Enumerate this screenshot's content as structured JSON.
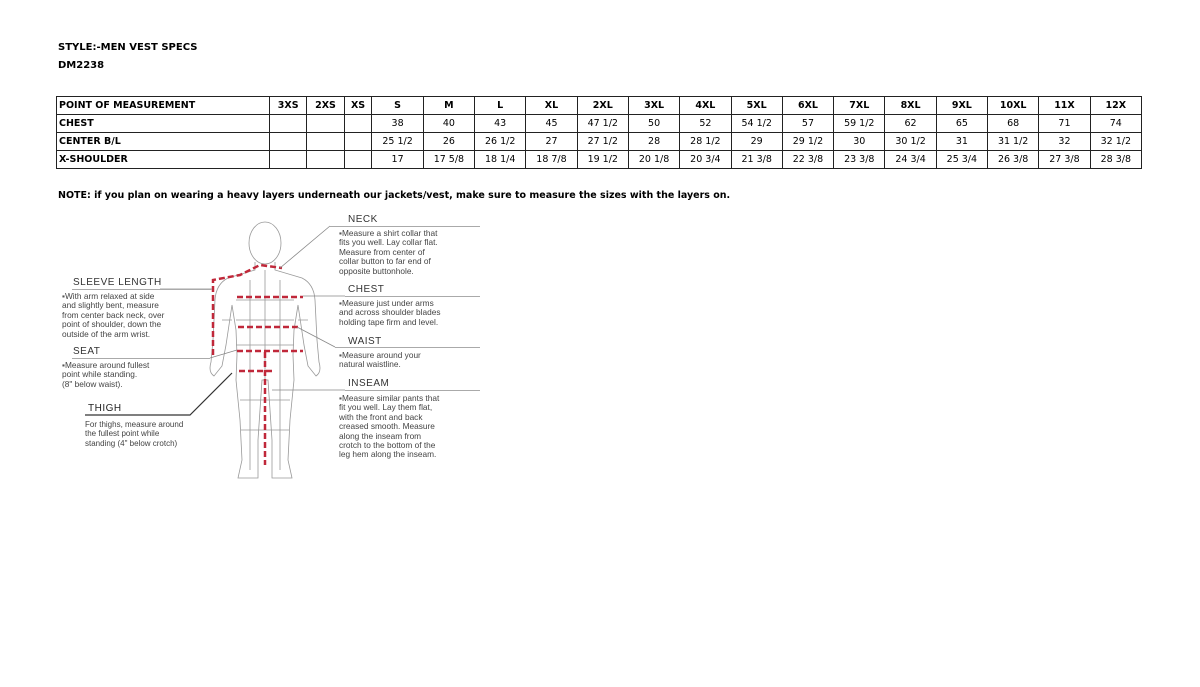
{
  "style_line": "STYLE:-MEN VEST SPECS",
  "style_code": "DM2238",
  "table": {
    "columns": [
      "POINT OF MEASUREMENT",
      "3XS",
      "2XS",
      "XS",
      "S",
      "M",
      "L",
      "XL",
      "2XL",
      "3XL",
      "4XL",
      "5XL",
      "6XL",
      "7XL",
      "8XL",
      "9XL",
      "10XL",
      "11X",
      "12X"
    ],
    "rows": [
      [
        "CHEST",
        "",
        "",
        "",
        "38",
        "40",
        "43",
        "45",
        "47 1/2",
        "50",
        "52",
        "54 1/2",
        "57",
        "59 1/2",
        "62",
        "65",
        "68",
        "71",
        "74"
      ],
      [
        "CENTER B/L",
        "",
        "",
        "",
        "25 1/2",
        "26",
        "26 1/2",
        "27",
        "27 1/2",
        "28",
        "28 1/2",
        "29",
        "29 1/2",
        "30",
        "30 1/2",
        "31",
        "31 1/2",
        "32",
        "32 1/2"
      ],
      [
        "X-SHOULDER",
        "",
        "",
        "",
        "17",
        "17 5/8",
        "18 1/4",
        "18 7/8",
        "19 1/2",
        "20 1/8",
        "20 3/4",
        "21 3/8",
        "22 3/8",
        "23 3/8",
        "24 3/4",
        "25 3/4",
        "26 3/8",
        "27 3/8",
        "28 3/8"
      ]
    ]
  },
  "note": "NOTE: if you plan on wearing a heavy layers underneath our jackets/vest, make sure to measure the sizes with the layers on.",
  "diagram": {
    "accent": "#c0283a",
    "neck": {
      "title": "NECK",
      "text": "Measure a shirt collar that\nfits you well. Lay collar flat.\nMeasure from center of\ncollar button to far end of\nopposite buttonhole."
    },
    "sleeve": {
      "title": "SLEEVE LENGTH",
      "text": "With arm relaxed at side\nand slightly bent, measure\nfrom center back neck, over\npoint of shoulder, down the\noutside of the arm wrist."
    },
    "chest": {
      "title": "CHEST",
      "text": "Measure just under arms\nand across shoulder blades\nholding tape firm and level."
    },
    "waist": {
      "title": "WAIST",
      "text": "Measure around your\nnatural waistline."
    },
    "seat": {
      "title": "SEAT",
      "text": "Measure around fullest\npoint while standing.\n(8\" below waist)."
    },
    "inseam": {
      "title": "INSEAM",
      "text": "Measure similar pants that\nfit you well. Lay them flat,\nwith the front and back\ncreased smooth. Measure\nalong the inseam from\ncrotch to the bottom of the\nleg hem along the inseam."
    },
    "thigh": {
      "title": "THIGH",
      "text": "For thighs, measure around\nthe fullest point while\nstanding (4\" below crotch)"
    }
  }
}
